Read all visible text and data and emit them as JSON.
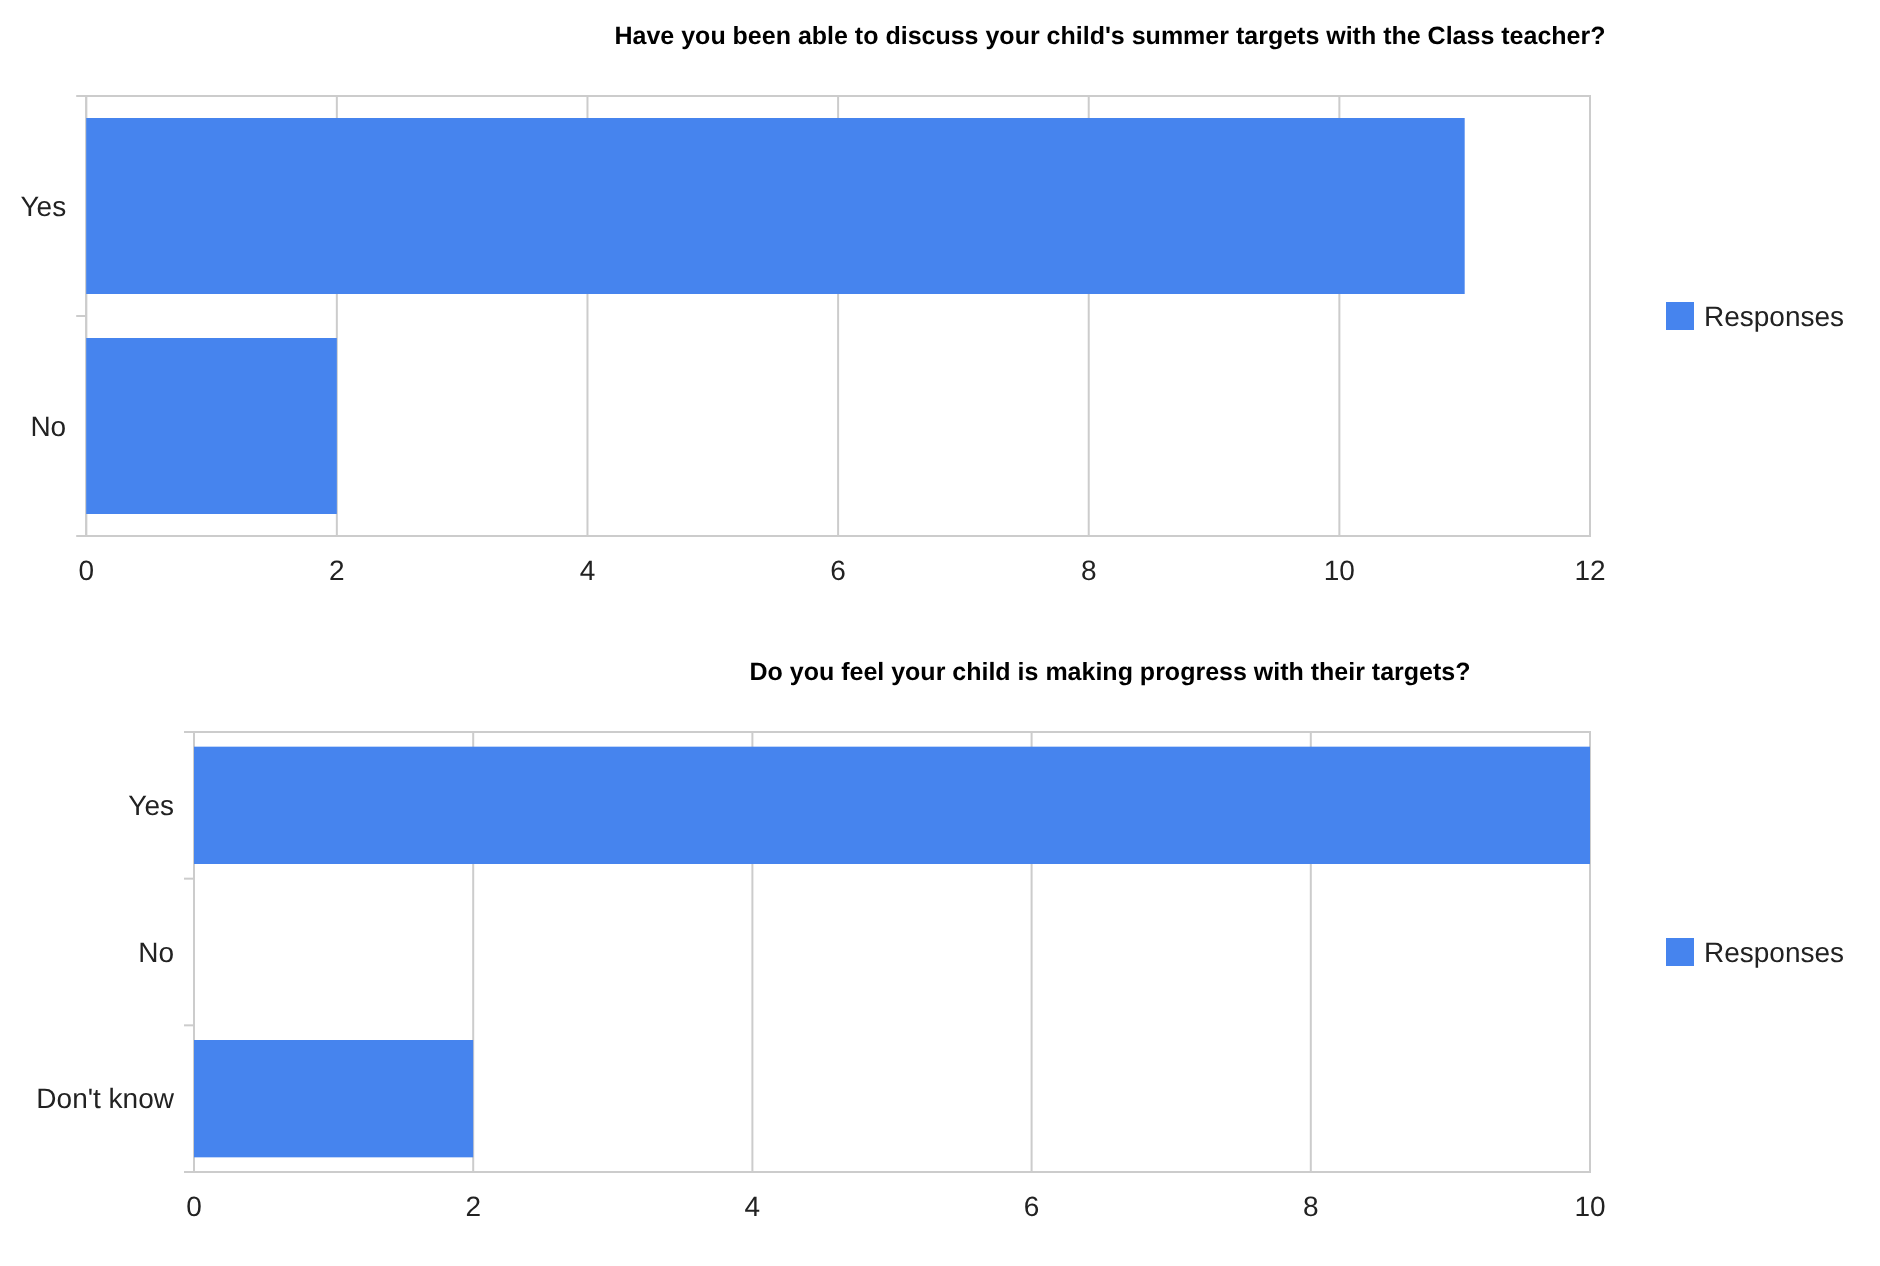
{
  "chart_data": [
    {
      "type": "bar",
      "orientation": "horizontal",
      "title": "Have you been able to discuss your child's summer targets with the Class teacher?",
      "categories": [
        "Yes",
        "No"
      ],
      "series": [
        {
          "name": "Responses",
          "color": "#4684ee",
          "values": [
            11,
            2
          ]
        }
      ],
      "xlim": [
        0,
        12
      ],
      "xticks": [
        0,
        2,
        4,
        6,
        8,
        10,
        12
      ],
      "grid": "x",
      "legend": "right"
    },
    {
      "type": "bar",
      "orientation": "horizontal",
      "title": "Do you feel your child is making progress with their targets?",
      "categories": [
        "Yes",
        "No",
        "Don't know"
      ],
      "series": [
        {
          "name": "Responses",
          "color": "#4684ee",
          "values": [
            10,
            0,
            2
          ]
        }
      ],
      "xlim": [
        0,
        10
      ],
      "xticks": [
        0,
        2,
        4,
        6,
        8,
        10
      ],
      "grid": "x",
      "legend": "right"
    }
  ]
}
